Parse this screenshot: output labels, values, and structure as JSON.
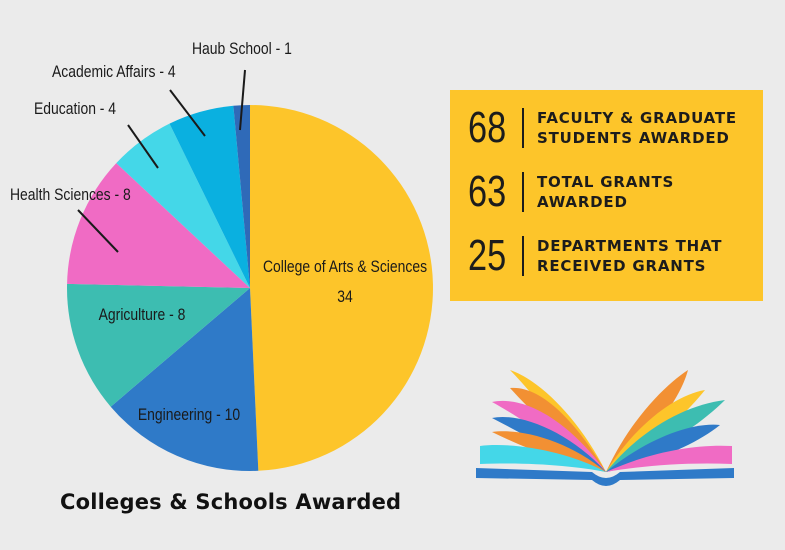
{
  "colors": {
    "background": "#ebebeb",
    "stats_box": "#fdc52a",
    "text_dark": "#1c1c1c"
  },
  "chart_data": {
    "type": "pie",
    "title": "Colleges & Schools Awarded",
    "slices": [
      {
        "name": "College of Arts & Sciences",
        "value": 34,
        "label_line1": "College of Arts & Sciences",
        "label_line2": "34",
        "color": "#fdc52a"
      },
      {
        "name": "Engineering",
        "value": 10,
        "label_line1": "Engineering - 10",
        "color": "#2f7ac8"
      },
      {
        "name": "Agriculture",
        "value": 8,
        "label_line1": "Agriculture - 8",
        "color": "#3dbdb1"
      },
      {
        "name": "Health Sciences",
        "value": 8,
        "label_line1": "Health Sciences - 8",
        "color": "#f06bc4"
      },
      {
        "name": "Education",
        "value": 4,
        "label_line1": "Education - 4",
        "color": "#44d7e8"
      },
      {
        "name": "Academic Affairs",
        "value": 4,
        "label_line1": "Academic Affairs - 4",
        "color": "#0ab0e0"
      },
      {
        "name": "Haub School",
        "value": 1,
        "label_line1": "Haub School - 1",
        "color": "#2f6ab8"
      }
    ]
  },
  "stats": [
    {
      "number": "68",
      "text": "Faculty & Graduate Students Awarded"
    },
    {
      "number": "63",
      "text": "Total Grants Awarded"
    },
    {
      "number": "25",
      "text": "Departments That Received Grants"
    }
  ],
  "book_icon": "open-book-icon"
}
